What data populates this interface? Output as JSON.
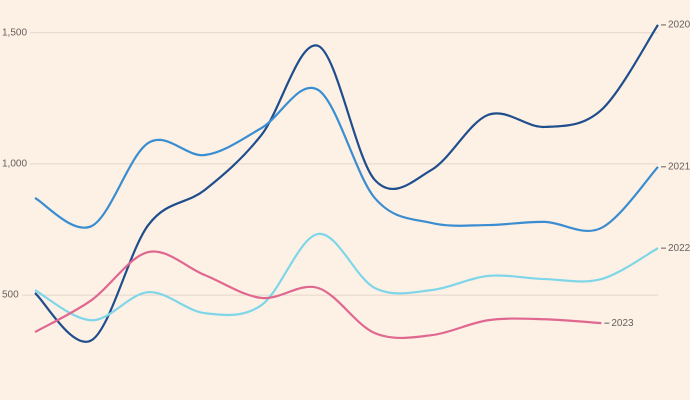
{
  "chart_data": {
    "type": "line",
    "categories": [
      null,
      null,
      null,
      null,
      null,
      null,
      null,
      null,
      null,
      null,
      null,
      null
    ],
    "ylim": [
      100,
      1625
    ],
    "yticks": [
      500,
      {
        "value": 1000,
        "label": "1,000"
      },
      {
        "value": 1500,
        "label": "1,500"
      }
    ],
    "grid": true,
    "series": [
      {
        "name": "2020",
        "color": "#1f4e8c",
        "values": [
          508,
          328,
          767,
          901,
          1111,
          1450,
          939,
          977,
          1187,
          1141,
          1206,
          1530
        ]
      },
      {
        "name": "2021",
        "color": "#3a8dd0",
        "values": [
          870,
          763,
          1080,
          1034,
          1137,
          1282,
          870,
          775,
          767,
          779,
          756,
          989
        ]
      },
      {
        "name": "2022",
        "color": "#7fd6e8",
        "values": [
          519,
          404,
          511,
          431,
          462,
          733,
          527,
          519,
          573,
          561,
          561,
          679
        ]
      },
      {
        "name": "2023",
        "color": "#e0678f",
        "values": [
          359,
          481,
          664,
          576,
          489,
          527,
          355,
          347,
          404,
          408,
          393,
          null
        ]
      }
    ]
  }
}
